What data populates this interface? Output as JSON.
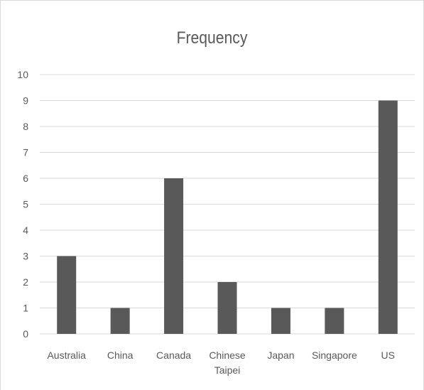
{
  "chart_data": {
    "type": "bar",
    "title": "Frequency",
    "categories": [
      "Australia",
      "China",
      "Canada",
      "Chinese Taipei",
      "Japan",
      "Singapore",
      "US"
    ],
    "category_lines": [
      [
        "Australia"
      ],
      [
        "China"
      ],
      [
        "Canada"
      ],
      [
        "Chinese",
        "Taipei"
      ],
      [
        "Japan"
      ],
      [
        "Singapore"
      ],
      [
        "US"
      ]
    ],
    "values": [
      3,
      1,
      6,
      2,
      1,
      1,
      9
    ],
    "ylim": [
      0,
      10
    ],
    "yticks": [
      0,
      1,
      2,
      3,
      4,
      5,
      6,
      7,
      8,
      9,
      10
    ],
    "xlabel": "",
    "ylabel": "",
    "grid": true,
    "legend": "none",
    "bar_color": "#595959",
    "grid_color": "#d9d9d9",
    "text_color": "#595959"
  }
}
